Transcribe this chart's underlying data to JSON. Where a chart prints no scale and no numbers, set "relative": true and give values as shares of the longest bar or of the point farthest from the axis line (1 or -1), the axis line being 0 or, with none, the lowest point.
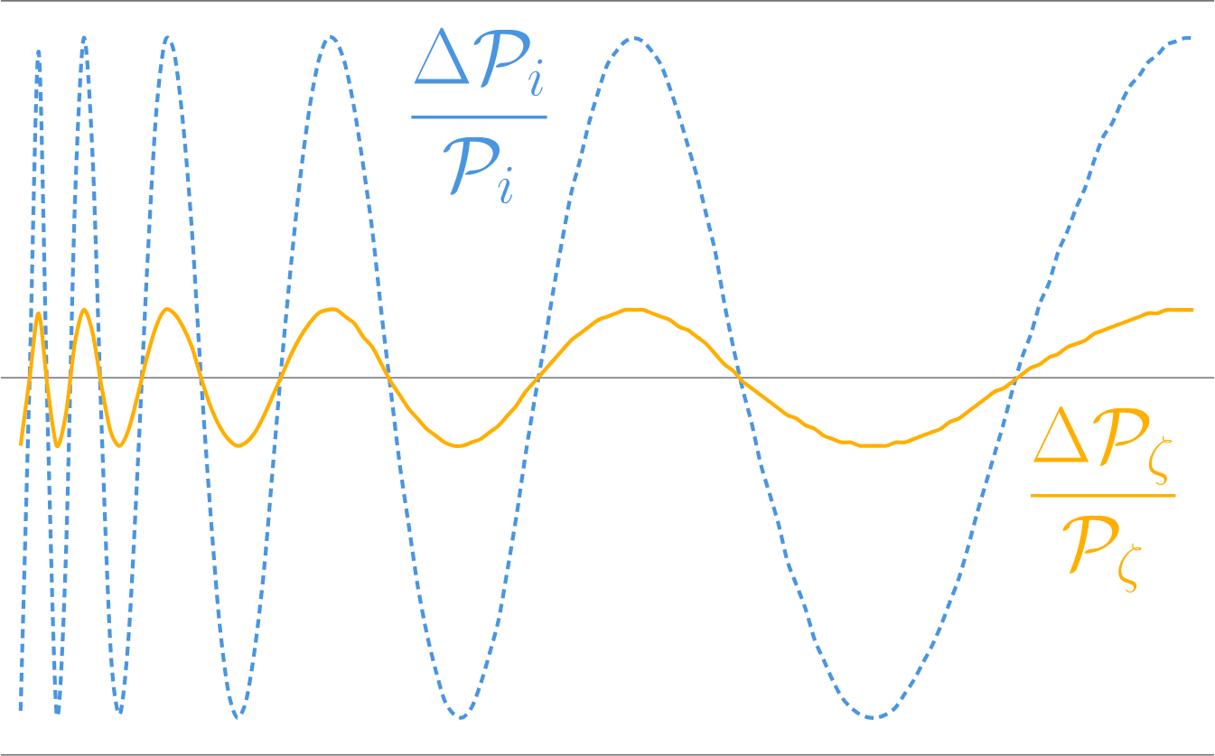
{
  "chart_data": {
    "type": "line",
    "relative": true,
    "tick_labels": false,
    "categories": [
      null,
      null,
      null,
      null,
      null,
      null,
      null,
      null,
      null,
      null,
      null,
      null,
      null,
      null,
      null,
      null,
      null,
      null,
      null,
      null,
      null,
      null,
      null,
      null,
      null,
      null,
      null,
      null,
      null,
      null,
      null,
      null,
      null,
      null,
      null,
      null,
      null,
      null,
      null,
      null,
      null,
      null,
      null,
      null,
      null,
      null,
      null,
      null,
      null,
      null,
      null,
      null,
      null,
      null,
      null,
      null,
      null,
      null,
      null,
      null,
      null,
      null,
      null,
      null,
      null,
      null,
      null,
      null,
      null,
      null,
      null,
      null,
      null,
      null,
      null,
      null,
      null,
      null,
      null,
      null,
      null,
      null,
      null,
      null,
      null,
      null,
      null,
      null,
      null,
      null,
      null,
      null,
      null,
      null,
      null,
      null,
      null,
      null,
      null,
      null,
      null,
      null,
      null,
      null,
      null,
      null,
      null,
      null,
      null,
      null,
      null,
      null,
      null,
      null,
      null,
      null,
      null,
      null,
      null,
      null,
      null,
      null,
      null,
      null,
      null,
      null,
      null,
      null,
      null,
      null,
      null
    ],
    "series": [
      {
        "name": "\\frac{\\Delta\\mathcal{P}_i}{\\mathcal{P}_i}",
        "color": "#4a95e0",
        "line_style": "dashed",
        "values": [
          -0.98,
          0,
          0.96,
          -0.13,
          -0.99,
          -0.54,
          0.5,
          1,
          0.64,
          -0.16,
          -0.81,
          -0.99,
          -0.75,
          -0.25,
          0.31,
          0.77,
          0.99,
          0.96,
          0.75,
          0.43,
          0,
          -0.38,
          -0.71,
          -0.92,
          -1,
          -0.95,
          -0.79,
          -0.56,
          -0.25,
          0.06,
          0.34,
          0.59,
          0.79,
          0.93,
          1,
          0.99,
          0.92,
          0.79,
          0.62,
          0.43,
          0.19,
          -0.03,
          -0.25,
          -0.43,
          -0.61,
          -0.75,
          -0.86,
          -0.95,
          -0.99,
          -1,
          -0.97,
          -0.9,
          -0.81,
          -0.71,
          -0.56,
          -0.4,
          -0.22,
          -0.06,
          0.09,
          0.25,
          0.4,
          0.54,
          0.64,
          0.75,
          0.84,
          0.92,
          0.96,
          0.99,
          1,
          0.99,
          0.96,
          0.92,
          0.85,
          0.77,
          0.68,
          0.59,
          0.48,
          0.37,
          0.22,
          0.09,
          -0.03,
          -0.13,
          -0.25,
          -0.34,
          -0.43,
          -0.54,
          -0.61,
          -0.68,
          -0.77,
          -0.83,
          -0.89,
          -0.94,
          -0.97,
          -0.99,
          -1,
          -1,
          -0.99,
          -0.97,
          -0.93,
          -0.89,
          -0.84,
          -0.79,
          -0.73,
          -0.66,
          -0.59,
          -0.5,
          -0.4,
          -0.31,
          -0.22,
          -0.13,
          -0.03,
          0.06,
          0.13,
          0.22,
          0.28,
          0.37,
          0.43,
          0.5,
          0.56,
          0.64,
          0.71,
          0.75,
          0.81,
          0.86,
          0.89,
          0.93,
          0.95,
          0.98,
          0.99,
          1,
          1
        ]
      },
      {
        "name": "\\frac{\\Delta\\mathcal{P}_\\zeta}{\\mathcal{P}_\\zeta}",
        "color": "#ffaf00",
        "line_style": "solid",
        "values": [
          -0.2,
          0,
          0.19,
          -0.03,
          -0.2,
          -0.11,
          0.1,
          0.2,
          0.13,
          -0.03,
          -0.16,
          -0.2,
          -0.15,
          -0.05,
          0.06,
          0.15,
          0.2,
          0.19,
          0.15,
          0.09,
          0,
          -0.08,
          -0.14,
          -0.18,
          -0.2,
          -0.19,
          -0.16,
          -0.11,
          -0.05,
          0.01,
          0.07,
          0.12,
          0.16,
          0.19,
          0.2,
          0.2,
          0.18,
          0.16,
          0.12,
          0.09,
          0.04,
          -0.01,
          -0.05,
          -0.09,
          -0.12,
          -0.15,
          -0.17,
          -0.19,
          -0.2,
          -0.2,
          -0.19,
          -0.18,
          -0.16,
          -0.14,
          -0.11,
          -0.08,
          -0.04,
          -0.01,
          0.02,
          0.05,
          0.08,
          0.11,
          0.13,
          0.15,
          0.17,
          0.18,
          0.19,
          0.2,
          0.2,
          0.2,
          0.19,
          0.18,
          0.17,
          0.15,
          0.14,
          0.12,
          0.1,
          0.07,
          0.04,
          0.02,
          -0.01,
          -0.03,
          -0.05,
          -0.07,
          -0.09,
          -0.11,
          -0.12,
          -0.14,
          -0.15,
          -0.17,
          -0.18,
          -0.19,
          -0.19,
          -0.2,
          -0.2,
          -0.2,
          -0.2,
          -0.19,
          -0.19,
          -0.18,
          -0.17,
          -0.16,
          -0.15,
          -0.13,
          -0.12,
          -0.1,
          -0.08,
          -0.06,
          -0.04,
          -0.03,
          -0.01,
          0.01,
          0.03,
          0.04,
          0.06,
          0.07,
          0.09,
          0.1,
          0.11,
          0.13,
          0.14,
          0.15,
          0.16,
          0.17,
          0.18,
          0.19,
          0.19,
          0.2,
          0.2,
          0.2,
          0.2
        ]
      }
    ]
  }
}
